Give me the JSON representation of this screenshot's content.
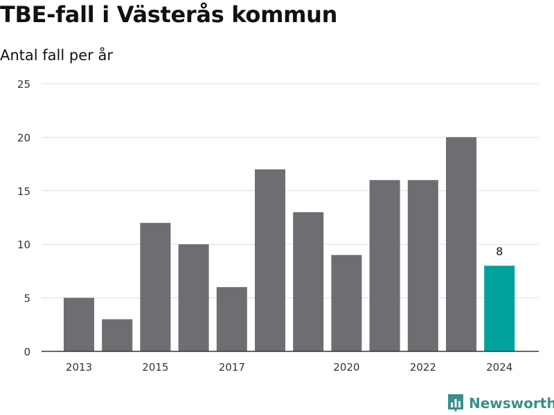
{
  "chart_data": {
    "type": "bar",
    "title": "TBE-fall i Västerås kommun",
    "subtitle": "Antal fall per år",
    "categories": [
      2013,
      2014,
      2015,
      2016,
      2017,
      2018,
      2019,
      2020,
      2021,
      2022,
      2023,
      2024
    ],
    "values": [
      5,
      3,
      12,
      10,
      6,
      17,
      13,
      9,
      16,
      16,
      20,
      8
    ],
    "x_tick_labels": [
      "2013",
      "2015",
      "2017",
      "2020",
      "2022",
      "2024"
    ],
    "y_ticks": [
      0,
      5,
      10,
      15,
      20,
      25
    ],
    "ylim": [
      0,
      25
    ],
    "grid": true,
    "highlight": {
      "category": 2024,
      "label": "8",
      "color": "#00a39b"
    },
    "bar_color": "#6e6e72",
    "xlabel": "",
    "ylabel": ""
  },
  "brand": {
    "name": "Newsworthy",
    "icon": "newsworthy-logo-icon",
    "color": "#3a8f8a"
  }
}
